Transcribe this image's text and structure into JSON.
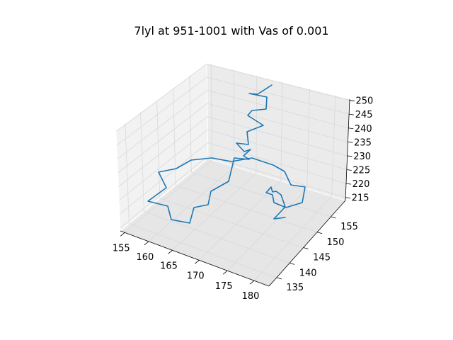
{
  "chart_data": {
    "type": "line3d",
    "title": "7lyl at 951-1001 with Vas of 0.001",
    "x_ticks": [
      "155",
      "160",
      "165",
      "170",
      "175",
      "180"
    ],
    "y_ticks": [
      "135",
      "140",
      "145",
      "150",
      "155"
    ],
    "z_ticks": [
      "215",
      "220",
      "225",
      "230",
      "235",
      "240",
      "245",
      "250"
    ],
    "grid": true,
    "line_color": "#1f77b4",
    "pane_color": "#f2f2f2",
    "grid_color": "#d9d9d9",
    "series": [
      {
        "points_screen_order": "data drawn as projected 3D polyline",
        "values": [
          [
            384,
            120
          ],
          [
            364,
            133
          ],
          [
            352,
            132
          ],
          [
            377,
            137
          ],
          [
            376,
            154
          ],
          [
            356,
            156
          ],
          [
            350,
            163
          ],
          [
            372,
            177
          ],
          [
            349,
            186
          ],
          [
            351,
            204
          ],
          [
            334,
            202
          ],
          [
            345,
            214
          ],
          [
            354,
            211
          ],
          [
            344,
            220
          ],
          [
            352,
            225
          ],
          [
            331,
            223
          ],
          [
            323,
            256
          ],
          [
            298,
            270
          ],
          [
            294,
            289
          ],
          [
            274,
            293
          ],
          [
            268,
            315
          ],
          [
            242,
            310
          ],
          [
            237,
            291
          ],
          [
            209,
            284
          ],
          [
            235,
            265
          ],
          [
            224,
            243
          ],
          [
            249,
            238
          ],
          [
            270,
            226
          ],
          [
            299,
            223
          ],
          [
            327,
            228
          ],
          [
            356,
            223
          ],
          [
            386,
            233
          ],
          [
            402,
            242
          ],
          [
            411,
            261
          ],
          [
            431,
            264
          ],
          [
            427,
            286
          ],
          [
            404,
            293
          ],
          [
            387,
            286
          ],
          [
            385,
            275
          ],
          [
            376,
            272
          ],
          [
            383,
            264
          ],
          [
            385,
            271
          ],
          [
            390,
            270
          ],
          [
            397,
            275
          ],
          [
            403,
            292
          ],
          [
            387,
            309
          ],
          [
            403,
            307
          ]
        ]
      }
    ]
  }
}
